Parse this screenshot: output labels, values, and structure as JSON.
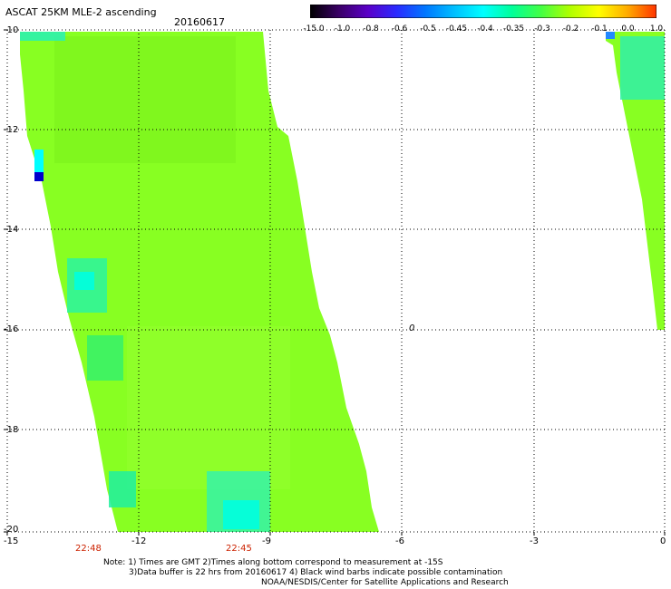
{
  "header": {
    "title": "ASCAT 25KM MLE-2 ascending",
    "date": "20160617"
  },
  "colorbar": {
    "labels": [
      "-15.0",
      "-1.0",
      "-0.8",
      "-0.6",
      "-0.5",
      "-0.45",
      "-0.4",
      "-0.35",
      "-0.3",
      "-0.2",
      "-0.1",
      "0.0",
      "1.0"
    ],
    "colors": [
      "#000000",
      "#3a0066",
      "#5a00c8",
      "#2a2aff",
      "#0077ff",
      "#00c0ff",
      "#00ffff",
      "#00ff99",
      "#44ff44",
      "#b0ff00",
      "#ffff00",
      "#ffaa00",
      "#ff3300"
    ]
  },
  "map": {
    "y_axis_labels": [
      "-10",
      "-12",
      "-14",
      "-16",
      "-18",
      "-20"
    ],
    "x_axis_labels": [
      "-15",
      "-12",
      "-9",
      "-6",
      "-3",
      "0"
    ],
    "time_labels": [
      "22:48",
      "22:45"
    ],
    "marker_text": "0",
    "swath_color": "#88ff22",
    "gridline_color": "#000000",
    "accent_lines_color": "#0000ff"
  },
  "notes": {
    "line1": "Note: 1) Times are GMT 2)Times along bottom correspond to measurement at -15S",
    "line2": "3)Data buffer is 22 hrs from 20160617 4) Black wind barbs indicate possible contamination",
    "line3": "NOAA/NESDIS/Center for Satellite Applications and Research"
  }
}
